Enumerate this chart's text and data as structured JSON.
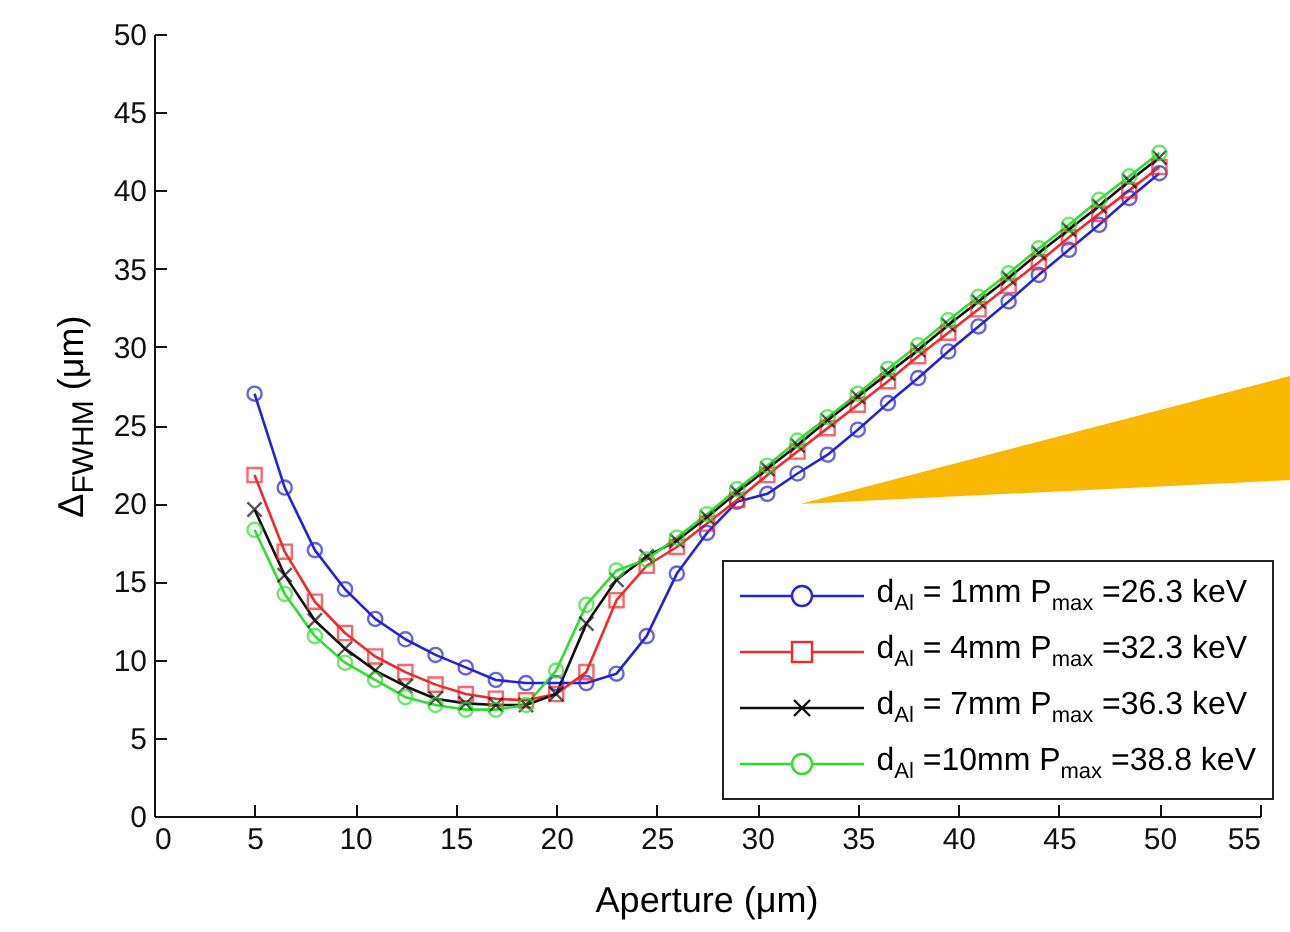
{
  "chart_data": {
    "type": "line",
    "xlabel": "Aperture (μm)",
    "ylabel": "Δ$_{FWHM}$ (μm)",
    "x": [
      5,
      6.5,
      8,
      9.5,
      11,
      12.5,
      14,
      15.5,
      17,
      18.5,
      20,
      21.5,
      23,
      24.5,
      26,
      27.5,
      29,
      30.5,
      32,
      33.5,
      35,
      36.5,
      38,
      39.5,
      41,
      42.5,
      44,
      45.5,
      47,
      48.5,
      50
    ],
    "series": [
      {
        "name": "d$_{Al}$ = 1mm P$_{max}$ =26.3 keV",
        "color": "#2323d8",
        "marker": "circle",
        "values": [
          27.0,
          21.0,
          17.0,
          14.5,
          12.6,
          11.3,
          10.3,
          9.5,
          8.7,
          8.5,
          8.5,
          8.5,
          9.1,
          11.5,
          15.5,
          18.1,
          20.1,
          20.6,
          21.9,
          23.1,
          24.7,
          26.4,
          28.0,
          29.7,
          31.3,
          32.9,
          34.6,
          36.2,
          37.8,
          39.5,
          41.1
        ]
      },
      {
        "name": "d$_{Al}$ = 4mm P$_{max}$ =32.3 keV",
        "color": "#f02a2a",
        "marker": "square",
        "values": [
          21.8,
          16.9,
          13.7,
          11.7,
          10.2,
          9.2,
          8.4,
          7.8,
          7.5,
          7.4,
          7.8,
          9.2,
          13.8,
          16.0,
          17.2,
          18.7,
          20.2,
          21.8,
          23.3,
          24.8,
          26.3,
          27.8,
          29.4,
          30.9,
          32.4,
          33.9,
          35.4,
          37.0,
          38.5,
          40.0,
          41.5
        ]
      },
      {
        "name": "d$_{Al}$ = 7mm P$_{max}$ =36.3 keV",
        "color": "#111111",
        "marker": "cross",
        "values": [
          19.6,
          15.4,
          12.5,
          10.7,
          9.3,
          8.3,
          7.5,
          7.2,
          7.1,
          7.1,
          7.8,
          12.3,
          15.1,
          16.6,
          17.6,
          19.1,
          20.7,
          22.2,
          23.7,
          25.3,
          26.8,
          28.3,
          29.8,
          31.4,
          32.9,
          34.4,
          36.0,
          37.5,
          39.0,
          40.6,
          42.1
        ]
      },
      {
        "name": "d$_{Al}$ =10mm P$_{max}$ =38.8 keV",
        "color": "#2ee02e",
        "marker": "circle",
        "values": [
          18.3,
          14.2,
          11.5,
          9.8,
          8.7,
          7.6,
          7.1,
          6.8,
          6.8,
          7.1,
          9.3,
          13.5,
          15.7,
          16.4,
          17.8,
          19.3,
          20.9,
          22.4,
          24.0,
          25.5,
          27.0,
          28.6,
          30.1,
          31.7,
          33.2,
          34.7,
          36.3,
          37.8,
          39.4,
          40.9,
          42.4
        ]
      }
    ],
    "xlim": [
      0,
      55
    ],
    "xticks": [
      0,
      5,
      10,
      15,
      20,
      25,
      30,
      35,
      40,
      45,
      50,
      55
    ],
    "ylim": [
      0,
      50
    ],
    "yticks": [
      0,
      5,
      10,
      15,
      20,
      25,
      30,
      35,
      40,
      45,
      50
    ],
    "grid": false,
    "legend": "bottom right",
    "line_style": "solid"
  }
}
